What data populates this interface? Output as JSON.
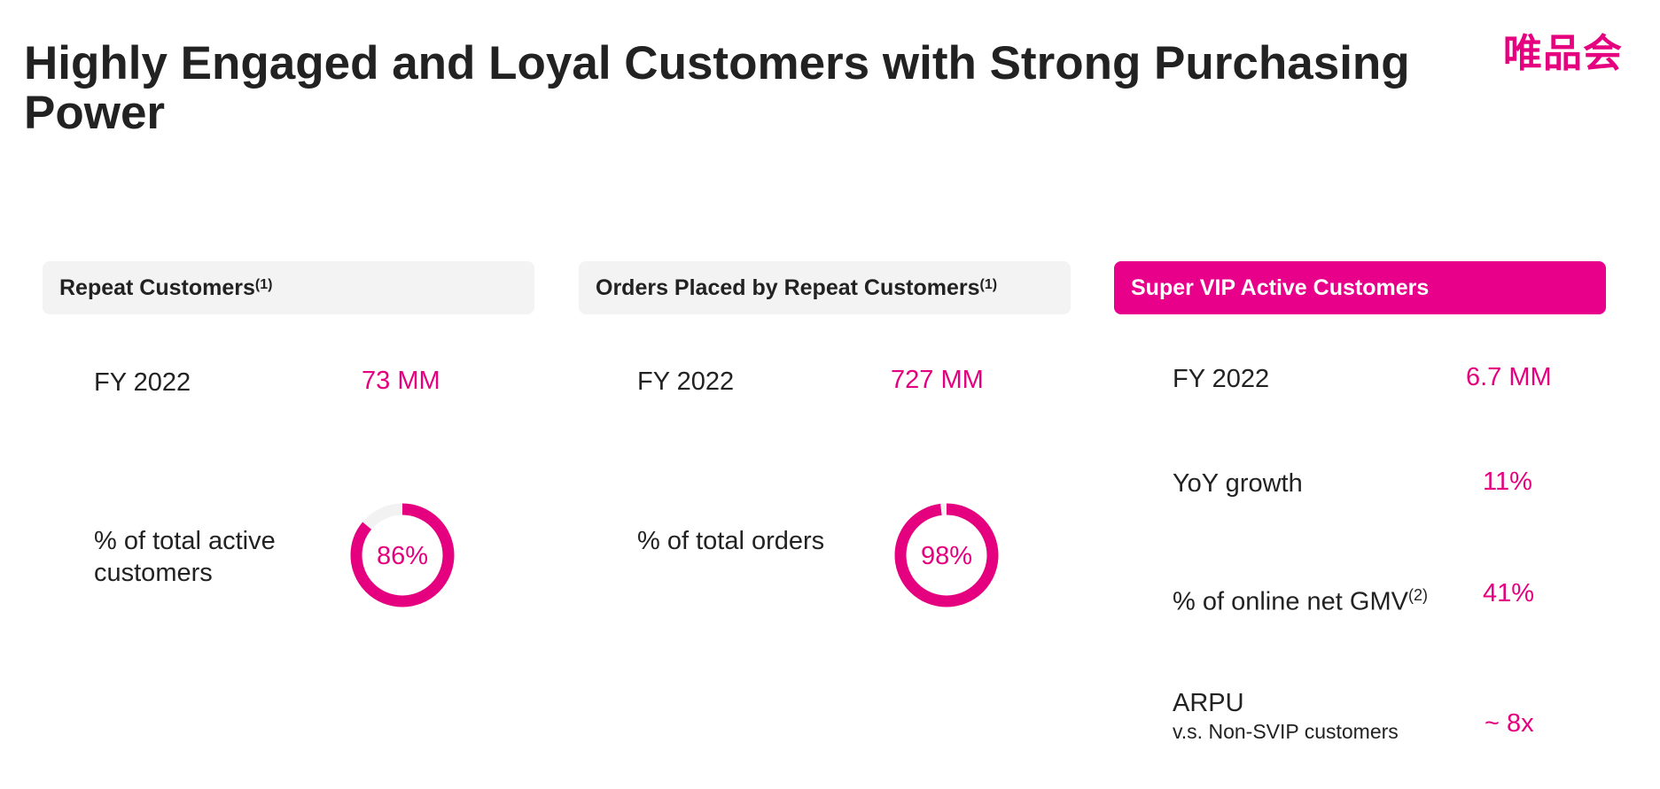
{
  "page": {
    "title": "Highly Engaged and Loyal Customers with Strong Purchasing Power",
    "logo_text": "唯品会",
    "accent_color": "#e5007f",
    "track_color": "#f2f2f2"
  },
  "columns": [
    {
      "header": "Repeat Customers",
      "header_note": "(1)",
      "year_label": "FY 2022",
      "year_value": "73 MM",
      "pct_label": "% of total active customers",
      "pct_value": "86%",
      "pct_fraction": 0.86
    },
    {
      "header": "Orders Placed by Repeat Customers",
      "header_note": "(1)",
      "year_label": "FY 2022",
      "year_value": "727 MM",
      "pct_label": "% of total orders",
      "pct_value": "98%",
      "pct_fraction": 0.98
    }
  ],
  "vip": {
    "header": "Super VIP Active Customers",
    "rows": [
      {
        "label": "FY 2022",
        "value": "6.7 MM"
      },
      {
        "label": "YoY growth",
        "value": "11%"
      },
      {
        "label": "% of online net GMV",
        "note": "(2)",
        "value": "41%"
      },
      {
        "label": "ARPU",
        "sub_label": "v.s. Non-SVIP customers",
        "value": "~ 8x"
      }
    ]
  }
}
